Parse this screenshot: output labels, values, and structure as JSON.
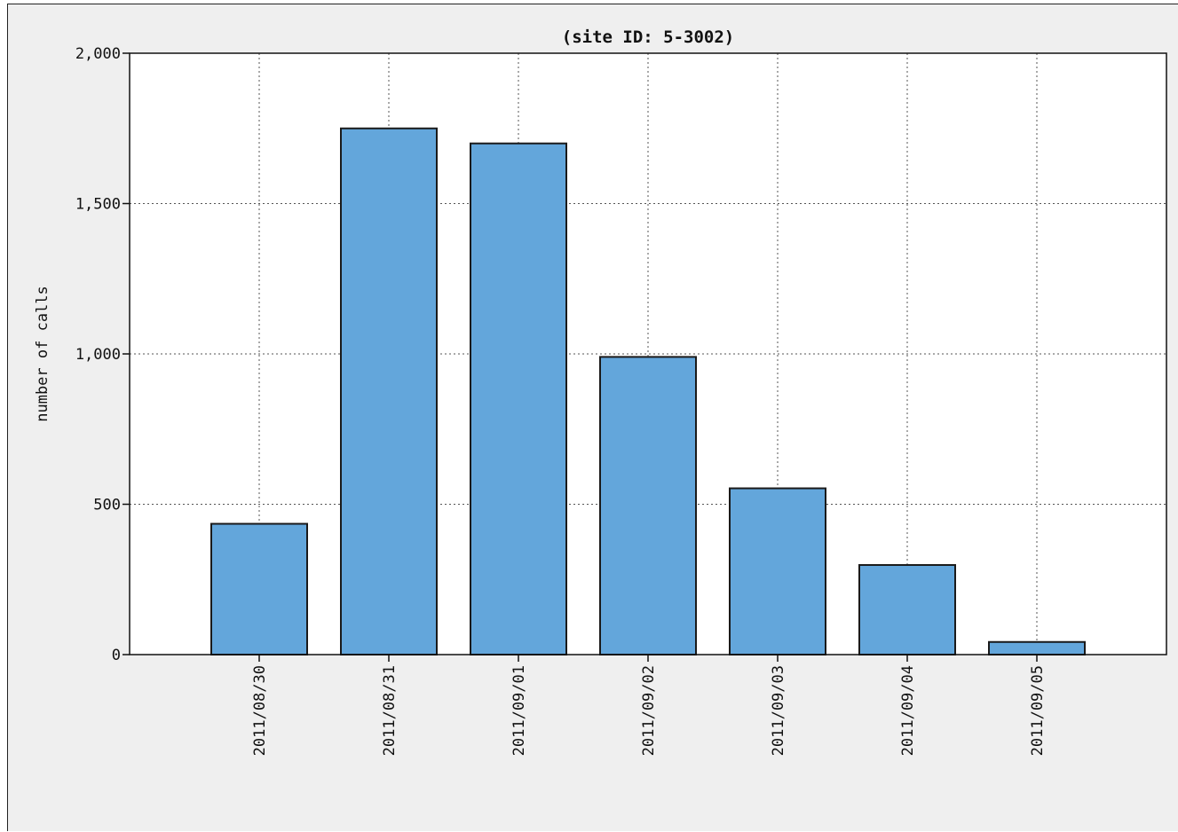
{
  "chart_data": {
    "type": "bar",
    "title": "(site ID: 5-3002)",
    "xlabel": "",
    "ylabel": "number of calls",
    "categories": [
      "2011/08/30",
      "2011/08/31",
      "2011/09/01",
      "2011/09/02",
      "2011/09/03",
      "2011/09/04",
      "2011/09/05"
    ],
    "values": [
      435,
      1750,
      1700,
      990,
      553,
      298,
      42
    ],
    "ylim": [
      0,
      2000
    ],
    "yticks": [
      0,
      500,
      1000,
      1500,
      2000
    ],
    "ytick_labels": [
      "0",
      "500",
      "1,000",
      "1,500",
      "2,000"
    ],
    "grid": true,
    "legend": "none",
    "colors": {
      "bar_fill": "#63a6db",
      "bar_stroke": "#1a1a1a",
      "plot_background": "#ffffff",
      "figure_background": "#efefef",
      "grid": "#555555"
    }
  }
}
